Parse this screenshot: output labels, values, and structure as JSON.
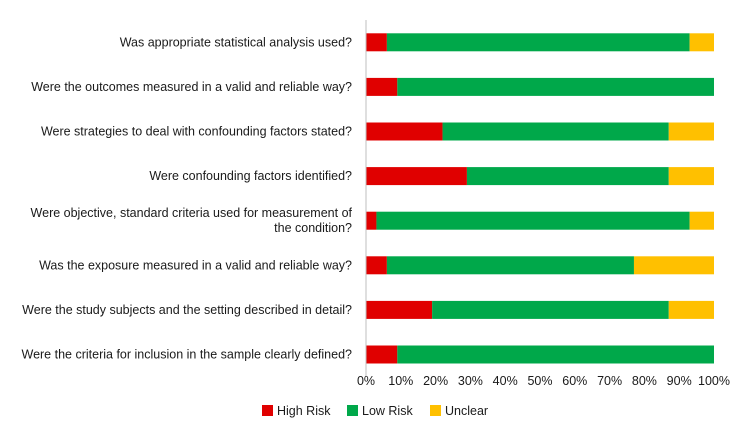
{
  "chart_data": {
    "type": "bar",
    "orientation": "horizontal",
    "stacked": true,
    "percent": true,
    "categories": [
      [
        "Was appropriate statistical analysis used?"
      ],
      [
        "Were the outcomes measured in a valid and reliable way?"
      ],
      [
        "Were strategies to deal with confounding factors stated?"
      ],
      [
        "Were confounding factors identified?"
      ],
      [
        "Were objective, standard criteria used for measurement of",
        "the condition?"
      ],
      [
        "Was the exposure measured in a valid and reliable way?"
      ],
      [
        "Were the study subjects and the setting described in detail?"
      ],
      [
        "Were the criteria for inclusion in the sample clearly defined?"
      ]
    ],
    "series": [
      {
        "name": "High Risk",
        "color": "#e00000",
        "values": [
          6,
          9,
          22,
          29,
          3,
          6,
          19,
          9
        ]
      },
      {
        "name": "Low Risk",
        "color": "#00a84a",
        "values": [
          87,
          91,
          65,
          58,
          90,
          71,
          68,
          91
        ]
      },
      {
        "name": "Unclear",
        "color": "#ffc000",
        "values": [
          7,
          0,
          13,
          13,
          7,
          23,
          13,
          0
        ]
      }
    ],
    "xlim": [
      0,
      100
    ],
    "xticks": [
      "0%",
      "10%",
      "20%",
      "30%",
      "40%",
      "50%",
      "60%",
      "70%",
      "80%",
      "90%",
      "100%"
    ],
    "grid": false,
    "legend_position": "bottom"
  }
}
